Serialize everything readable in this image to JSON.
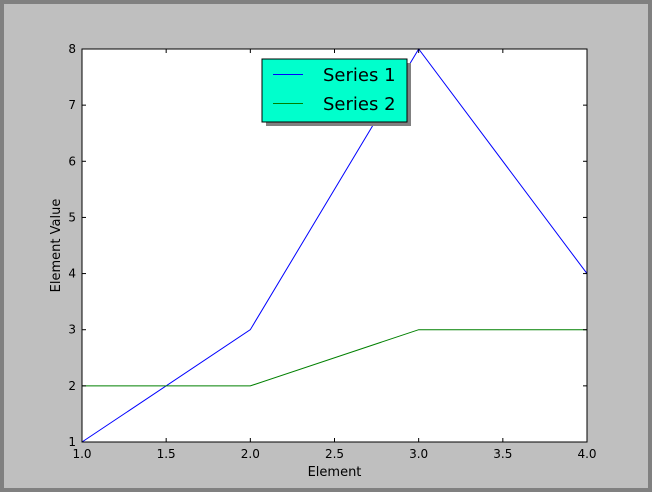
{
  "chart_data": {
    "type": "line",
    "title": "",
    "xlabel": "Element",
    "ylabel": "Element Value",
    "x": [
      1.0,
      2.0,
      3.0,
      4.0
    ],
    "series": [
      {
        "name": "Series 1",
        "values": [
          1,
          3,
          8,
          4
        ],
        "color": "#0000ff"
      },
      {
        "name": "Series 2",
        "values": [
          2,
          2,
          3,
          3
        ],
        "color": "#008000"
      }
    ],
    "xlim": [
      1.0,
      4.0
    ],
    "ylim": [
      1,
      8
    ],
    "xticks": [
      "1.0",
      "1.5",
      "2.0",
      "2.5",
      "3.0",
      "3.5",
      "4.0"
    ],
    "yticks": [
      "1",
      "2",
      "3",
      "4",
      "5",
      "6",
      "7",
      "8"
    ],
    "grid": false,
    "legend": {
      "placement": "upper center",
      "background": "#00ffcc",
      "shadow": true
    }
  },
  "colors": {
    "figure_background": "#bfbfbf",
    "figure_border": "#808080",
    "plot_background": "#ffffff"
  }
}
